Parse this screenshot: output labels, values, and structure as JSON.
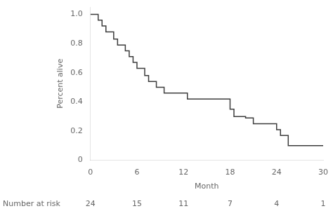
{
  "chart_data": {
    "type": "line",
    "line_style": "steps-post",
    "color": "#3c3c3c",
    "grid": false,
    "xlabel": "Month",
    "ylabel": "Percent alive",
    "x": [
      0,
      1,
      1.5,
      2,
      2.5,
      3,
      3.5,
      4,
      4.5,
      5,
      5.5,
      6,
      6.5,
      7,
      7.5,
      8.5,
      9.5,
      10.5,
      11.5,
      12.5,
      13.5,
      14.5,
      17.5,
      18,
      18.5,
      19,
      20,
      21,
      22,
      23,
      24,
      24.5,
      25.5,
      30
    ],
    "values": [
      1.0,
      0.96,
      0.92,
      0.88,
      0.88,
      0.83,
      0.79,
      0.79,
      0.75,
      0.71,
      0.67,
      0.63,
      0.63,
      0.58,
      0.54,
      0.5,
      0.46,
      0.46,
      0.46,
      0.42,
      0.42,
      0.42,
      0.42,
      0.35,
      0.3,
      0.3,
      0.29,
      0.25,
      0.25,
      0.25,
      0.21,
      0.17,
      0.1,
      0.1
    ],
    "xlim": [
      0,
      30
    ],
    "xticks": [
      0,
      6,
      12,
      18,
      24,
      30
    ],
    "ylim": [
      0,
      1.05
    ],
    "yticks": [
      0,
      0.2,
      0.4,
      0.6,
      0.8,
      {
        "value": 1.0,
        "label": "1.0"
      }
    ],
    "at_risk_label": "Number at risk",
    "at_risk_x": [
      0,
      6,
      12,
      18,
      24,
      30
    ],
    "at_risk_counts": [
      24,
      15,
      11,
      7,
      4,
      1
    ]
  }
}
